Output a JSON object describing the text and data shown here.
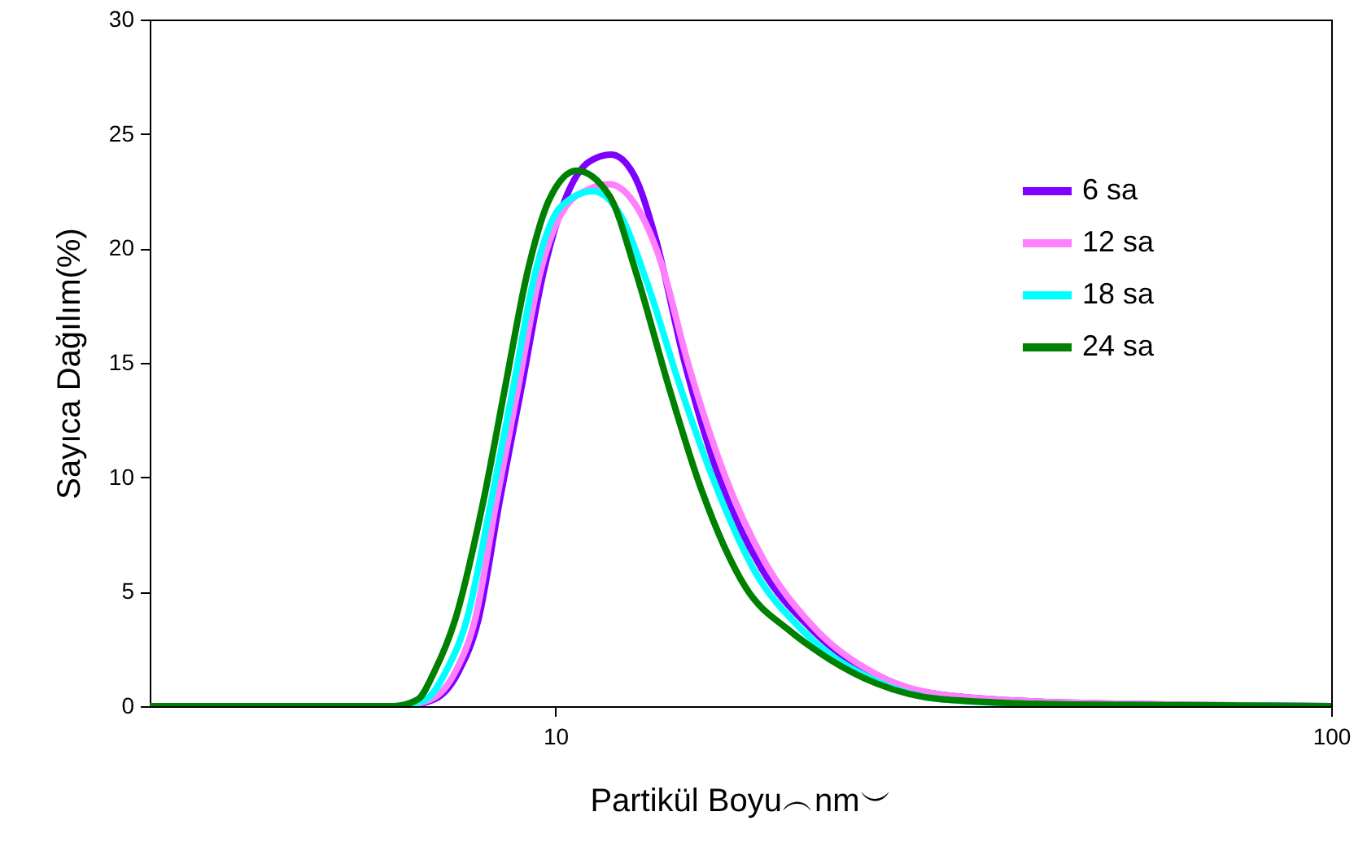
{
  "chart_data": {
    "type": "line",
    "xlabel": "Partikül Boyu︵nm︶",
    "ylabel": "Sayıca Dağılım(%)",
    "log": "x",
    "xlim": [
      3,
      100
    ],
    "xticks": [
      10,
      100
    ],
    "ylim": [
      0,
      30
    ],
    "yticks": [
      0,
      5,
      10,
      15,
      20,
      25,
      30
    ],
    "grid": false,
    "legend": "top right",
    "line_style": "solid",
    "series": [
      {
        "name": "6 sa",
        "color": "#8000ff",
        "x": [
          3,
          6.33,
          6.98,
          7.5,
          7.96,
          8.48,
          9.03,
          9.66,
          10.4,
          11.07,
          11.8,
          12.63,
          13.45,
          14.68,
          16.33,
          18.45,
          21.33,
          25.9,
          31.5,
          46.4,
          100
        ],
        "values": [
          0,
          0,
          0.3,
          1.5,
          3.8,
          9,
          13.8,
          19,
          22.5,
          23.8,
          24.1,
          23.2,
          20.5,
          15,
          9.8,
          6,
          3.4,
          1.3,
          0.5,
          0.15,
          0
        ]
      },
      {
        "name": "12 sa",
        "color": "#ff80ff",
        "x": [
          3,
          6.27,
          6.91,
          7.43,
          7.88,
          8.4,
          8.94,
          9.57,
          10.3,
          11.07,
          11.74,
          12.63,
          13.65,
          14.82,
          16.57,
          18.62,
          21.33,
          25.9,
          31.5,
          46.4,
          100
        ],
        "values": [
          0,
          0,
          0.3,
          1.5,
          3.8,
          9,
          13.8,
          19,
          21.8,
          22.6,
          22.8,
          22,
          19.5,
          15,
          10,
          6.3,
          3.6,
          1.4,
          0.5,
          0.15,
          0
        ]
      },
      {
        "name": "18 sa",
        "color": "#00ffff",
        "x": [
          3,
          6.21,
          6.81,
          7.22,
          7.69,
          8.27,
          8.81,
          9.43,
          10.15,
          11.18,
          12.2,
          13.13,
          14.47,
          15.94,
          18,
          20.83,
          25.9,
          31.5,
          46.4,
          100
        ],
        "values": [
          0,
          0,
          0.3,
          1.5,
          3.8,
          9,
          13.8,
          19,
          21.8,
          22.5,
          21.3,
          18.5,
          14,
          10,
          6,
          3.3,
          1.1,
          0.3,
          0.05,
          0
        ]
      },
      {
        "name": "24 sa",
        "color": "#008000",
        "x": [
          3,
          6.18,
          6.65,
          6.98,
          7.43,
          8.08,
          8.6,
          9.21,
          9.81,
          10.65,
          11.74,
          12.69,
          13.99,
          15.41,
          17.58,
          20.04,
          21.33,
          25.9,
          31.5,
          46.4,
          100
        ],
        "values": [
          0,
          0,
          0.3,
          1.5,
          3.8,
          9,
          13.8,
          19,
          22.1,
          23.4,
          22.3,
          19,
          14,
          9.5,
          5.2,
          3.3,
          2.6,
          1,
          0.3,
          0.07,
          0
        ]
      }
    ]
  }
}
